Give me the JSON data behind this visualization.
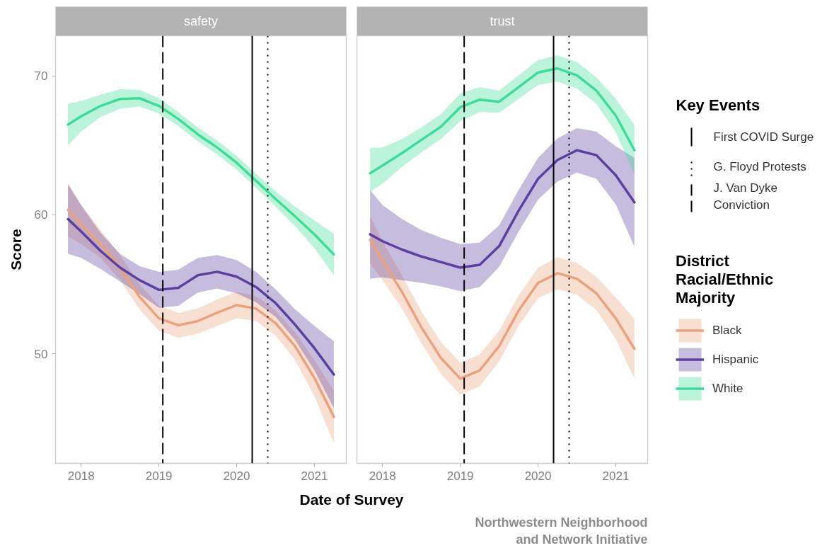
{
  "chart_data": [
    {
      "type": "line",
      "title": "safety",
      "ylabel": "Score",
      "xlabel": "Date of Survey",
      "x": [
        2017.83,
        2018.0,
        2018.25,
        2018.5,
        2018.75,
        2019.0,
        2019.25,
        2019.5,
        2019.75,
        2020.0,
        2020.25,
        2020.5,
        2020.75,
        2021.0,
        2021.25
      ],
      "series": [
        {
          "color": "#e9a27d",
          "values": [
            60.35,
            59.3,
            57.9,
            56.2,
            54.1,
            52.55,
            52.05,
            52.35,
            52.95,
            53.5,
            53.25,
            52.2,
            50.55,
            48.25,
            45.45
          ],
          "lower": [
            58.45,
            57.9,
            56.9,
            55.3,
            53.2,
            51.65,
            51.15,
            51.45,
            52.0,
            52.55,
            52.35,
            51.3,
            49.55,
            46.95,
            43.55
          ],
          "upper": [
            62.25,
            60.7,
            58.9,
            57.1,
            55.0,
            53.45,
            52.95,
            53.25,
            53.9,
            54.45,
            54.15,
            53.1,
            51.55,
            49.55,
            47.35
          ]
        },
        {
          "color": "#5c3f9e",
          "values": [
            59.7,
            58.8,
            57.4,
            56.2,
            55.3,
            54.6,
            54.75,
            55.65,
            55.9,
            55.55,
            54.8,
            53.65,
            52.1,
            50.4,
            48.5
          ],
          "lower": [
            57.2,
            56.9,
            56.1,
            55.2,
            54.3,
            53.3,
            53.45,
            54.4,
            54.7,
            54.35,
            53.7,
            52.65,
            51.0,
            48.8,
            46.1
          ],
          "upper": [
            62.2,
            60.7,
            58.7,
            57.2,
            56.3,
            55.9,
            56.05,
            56.9,
            57.1,
            56.75,
            55.9,
            54.65,
            53.2,
            52.0,
            50.9
          ]
        },
        {
          "color": "#3ddc97",
          "values": [
            66.5,
            67.1,
            67.85,
            68.35,
            68.4,
            67.85,
            66.9,
            65.8,
            64.85,
            63.75,
            62.45,
            61.15,
            59.9,
            58.6,
            57.15
          ],
          "lower": [
            65.0,
            66.0,
            67.05,
            67.65,
            67.8,
            67.3,
            66.4,
            65.3,
            64.35,
            63.25,
            61.95,
            60.6,
            59.2,
            57.6,
            55.65
          ],
          "upper": [
            68.0,
            68.2,
            68.65,
            69.05,
            69.0,
            68.4,
            67.4,
            66.3,
            65.35,
            64.25,
            62.95,
            61.7,
            60.6,
            59.6,
            58.65
          ]
        }
      ],
      "xlim": [
        2017.67,
        2021.41
      ],
      "xticks": [
        2018,
        2019,
        2020,
        2021
      ],
      "ylim": [
        42.1,
        72.9
      ],
      "yticks": [
        50,
        60,
        70
      ],
      "grid": false,
      "ref_lines": [
        {
          "axis": "x",
          "value": 2020.2,
          "line_style": "solid",
          "color": "#000000"
        },
        {
          "axis": "x",
          "value": 2020.4,
          "line_style": "dotted",
          "color": "#000000"
        },
        {
          "axis": "x",
          "value": 2019.05,
          "line_style": "dashed",
          "color": "#000000"
        }
      ]
    },
    {
      "type": "line",
      "title": "trust",
      "legend_title": "District Racial/Ethnic Majority",
      "legend": "right",
      "tick_labels": "x",
      "annotations": [
        "Key Events",
        "First COVID Surge",
        "G. Floyd Protests",
        "J. Van Dyke Conviction",
        "Northwestern Neighborhood and Network Initiative"
      ],
      "x": [
        2017.84,
        2018.0,
        2018.25,
        2018.5,
        2018.75,
        2019.0,
        2019.25,
        2019.5,
        2019.75,
        2020.0,
        2020.25,
        2020.5,
        2020.75,
        2021.0,
        2021.24
      ],
      "series": [
        {
          "name": "Black",
          "color": "#e9a27d",
          "values": [
            58.2,
            56.7,
            54.45,
            51.9,
            49.7,
            48.2,
            48.8,
            50.55,
            53.1,
            55.1,
            55.8,
            55.4,
            54.35,
            52.55,
            50.35
          ],
          "lower": [
            56.5,
            55.3,
            53.25,
            50.75,
            48.55,
            47.05,
            47.65,
            49.45,
            52.0,
            54.0,
            54.65,
            54.25,
            53.15,
            51.05,
            48.2
          ],
          "upper": [
            59.9,
            58.1,
            55.65,
            53.05,
            50.85,
            49.35,
            49.95,
            51.65,
            54.2,
            56.2,
            56.95,
            56.55,
            55.55,
            54.05,
            52.5
          ]
        },
        {
          "name": "Hispanic",
          "color": "#5c3f9e",
          "values": [
            58.6,
            58.1,
            57.5,
            57.0,
            56.6,
            56.2,
            56.4,
            57.75,
            60.3,
            62.6,
            63.95,
            64.65,
            64.3,
            62.85,
            60.9
          ],
          "lower": [
            55.4,
            55.5,
            55.3,
            55.1,
            54.85,
            54.5,
            54.8,
            56.25,
            58.8,
            61.1,
            62.4,
            63.05,
            62.6,
            60.75,
            57.7
          ],
          "upper": [
            61.8,
            60.7,
            59.7,
            58.9,
            58.35,
            57.9,
            58.0,
            59.25,
            61.8,
            64.1,
            65.5,
            66.25,
            66.0,
            64.95,
            64.1
          ]
        },
        {
          "name": "White",
          "color": "#3ddc97",
          "values": [
            63.0,
            63.55,
            64.45,
            65.4,
            66.35,
            67.75,
            68.3,
            68.15,
            69.2,
            70.25,
            70.55,
            70.05,
            68.95,
            67.15,
            64.65
          ],
          "lower": [
            61.65,
            62.25,
            63.45,
            64.5,
            65.45,
            66.75,
            67.4,
            67.35,
            68.35,
            69.35,
            69.6,
            69.1,
            68.0,
            65.95,
            62.9
          ],
          "upper": [
            64.8,
            64.85,
            65.45,
            66.3,
            67.25,
            68.75,
            69.2,
            68.95,
            70.05,
            71.15,
            71.5,
            71.0,
            69.9,
            68.35,
            66.5
          ]
        }
      ],
      "xlim": [
        2017.67,
        2021.41
      ],
      "xticks": [
        2018,
        2019,
        2020,
        2021
      ],
      "ylim": [
        42.1,
        72.9
      ],
      "yticks": [
        50,
        60,
        70
      ],
      "grid": false,
      "ref_lines": [
        {
          "axis": "x",
          "value": 2020.2,
          "line_style": "solid",
          "color": "#000000"
        },
        {
          "axis": "x",
          "value": 2020.4,
          "line_style": "dotted",
          "color": "#000000"
        },
        {
          "axis": "x",
          "value": 2019.05,
          "line_style": "dashed",
          "color": "#000000"
        }
      ]
    }
  ]
}
